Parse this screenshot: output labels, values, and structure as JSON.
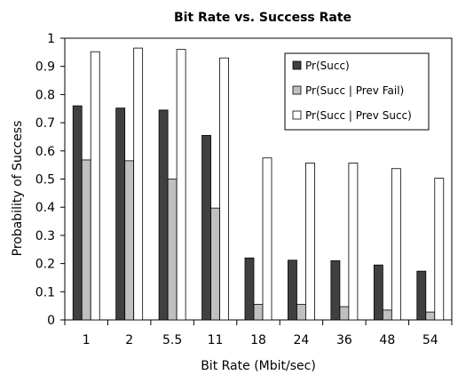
{
  "chart_data": {
    "type": "bar",
    "title": "Bit Rate vs. Success Rate",
    "xlabel": "Bit Rate (Mbit/sec)",
    "ylabel": "Probability of Success",
    "ylim": [
      0,
      1
    ],
    "yticks": [
      "0",
      "0.1",
      "0.2",
      "0.3",
      "0.4",
      "0.5",
      "0.6",
      "0.7",
      "0.8",
      "0.9",
      "1"
    ],
    "categories": [
      "1",
      "2",
      "5.5",
      "11",
      "18",
      "24",
      "36",
      "48",
      "54"
    ],
    "grid": false,
    "legend_position": "top-right",
    "series": [
      {
        "name": "Pr(Succ)",
        "color": "#404040",
        "values": [
          0.76,
          0.752,
          0.745,
          0.655,
          0.22,
          0.212,
          0.21,
          0.195,
          0.173
        ]
      },
      {
        "name": "Pr(Succ | Prev Fail)",
        "color": "#c0c0c0",
        "values": [
          0.568,
          0.565,
          0.5,
          0.397,
          0.055,
          0.055,
          0.047,
          0.035,
          0.028
        ]
      },
      {
        "name": "Pr(Succ | Prev Succ)",
        "color": "#ffffff",
        "values": [
          0.952,
          0.965,
          0.96,
          0.93,
          0.575,
          0.557,
          0.557,
          0.537,
          0.503
        ]
      }
    ]
  }
}
